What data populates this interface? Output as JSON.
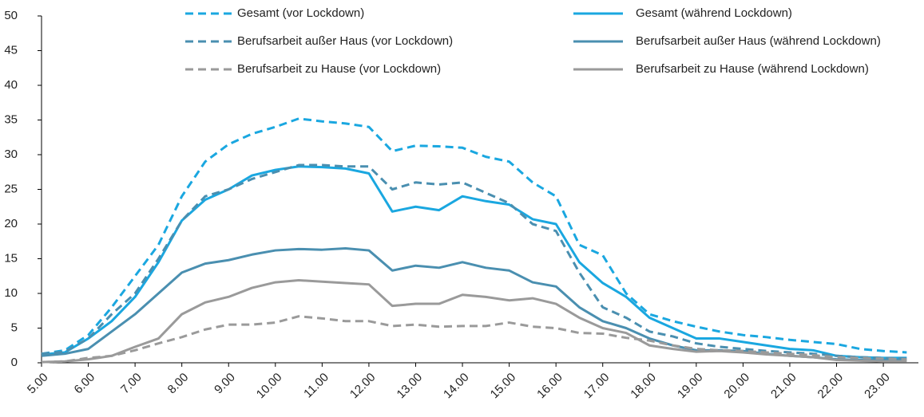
{
  "chart_data": {
    "type": "line",
    "x": [
      5,
      5.5,
      6,
      6.5,
      7,
      7.5,
      8,
      8.5,
      9,
      9.5,
      10,
      10.5,
      11,
      11.5,
      12,
      12.5,
      13,
      13.5,
      14,
      14.5,
      15,
      15.5,
      16,
      16.5,
      17,
      17.5,
      18,
      18.5,
      19,
      19.5,
      20,
      20.5,
      21,
      21.5,
      22,
      22.5,
      23,
      23.5
    ],
    "series": [
      {
        "name": "Gesamt (vor Lockdown)",
        "color": "#1aa7e0",
        "dashed": true,
        "values": [
          1.3,
          1.8,
          4,
          8,
          12.5,
          17,
          24,
          29,
          31.5,
          33,
          34,
          35.2,
          34.8,
          34.5,
          34,
          30.5,
          31.3,
          31.2,
          31,
          29.7,
          29,
          26,
          24,
          17,
          15.5,
          10,
          7,
          6,
          5.2,
          4.5,
          4,
          3.7,
          3.3,
          3,
          2.7,
          2,
          1.7,
          1.5
        ]
      },
      {
        "name": "Gesamt (während Lockdown)",
        "color": "#1aa7e0",
        "dashed": false,
        "values": [
          1.2,
          1.5,
          3.5,
          6,
          9.5,
          14.5,
          20.5,
          23.5,
          25,
          27,
          27.8,
          28.3,
          28.2,
          28,
          27.3,
          21.8,
          22.5,
          22,
          24,
          23.3,
          22.8,
          20.7,
          20,
          14.5,
          11.5,
          9.5,
          6.5,
          5,
          3.5,
          3.5,
          3,
          2.5,
          2,
          1.8,
          1,
          0.8,
          0.7,
          0.7
        ]
      },
      {
        "name": "Berufsarbeit außer Haus (vor Lockdown)",
        "color": "#4a8fb0",
        "dashed": true,
        "values": [
          1.3,
          1.6,
          3.5,
          7,
          10,
          15,
          20.5,
          24,
          25,
          26.5,
          27.5,
          28.5,
          28.5,
          28.3,
          28.3,
          25,
          26,
          25.7,
          26,
          24.5,
          23,
          20,
          19,
          13,
          8,
          6.5,
          4.5,
          3.8,
          2.8,
          2.3,
          2,
          1.7,
          1.5,
          1.3,
          1,
          0.8,
          0.7,
          0.6
        ]
      },
      {
        "name": "Berufsarbeit außer Haus (während Lockdown)",
        "color": "#4a8fb0",
        "dashed": false,
        "values": [
          1,
          1.3,
          2,
          4.5,
          7,
          10,
          13,
          14.3,
          14.8,
          15.6,
          16.2,
          16.4,
          16.3,
          16.5,
          16.2,
          13.3,
          14,
          13.7,
          14.5,
          13.7,
          13.3,
          11.6,
          11,
          8,
          6,
          5,
          3.5,
          2.5,
          1.8,
          1.8,
          1.7,
          1.3,
          1,
          0.8,
          0.5,
          0.4,
          0.4,
          0.4
        ]
      },
      {
        "name": "Berufsarbeit zu Hause (vor Lockdown)",
        "color": "#9a9a9a",
        "dashed": true,
        "values": [
          0.1,
          0.2,
          0.7,
          1,
          1.8,
          2.8,
          3.7,
          4.8,
          5.5,
          5.5,
          5.8,
          6.7,
          6.4,
          6,
          6,
          5.3,
          5.5,
          5.2,
          5.3,
          5.3,
          5.8,
          5.2,
          5,
          4.3,
          4.2,
          3.6,
          3.2,
          2.5,
          2,
          1.8,
          1.7,
          1.5,
          1.3,
          1.1,
          0.8,
          0.7,
          0.6,
          0.5
        ]
      },
      {
        "name": "Berufsarbeit zu Hause (während Lockdown)",
        "color": "#9a9a9a",
        "dashed": false,
        "values": [
          0.1,
          0.2,
          0.5,
          1,
          2.3,
          3.5,
          7,
          8.7,
          9.5,
          10.8,
          11.6,
          11.9,
          11.7,
          11.5,
          11.3,
          8.2,
          8.5,
          8.5,
          9.8,
          9.5,
          9,
          9.3,
          8.5,
          6.5,
          5,
          4.3,
          2.5,
          2,
          1.6,
          1.7,
          1.5,
          1.2,
          1,
          0.8,
          0.4,
          0.3,
          0.2,
          0.2
        ]
      }
    ],
    "xlim": [
      5,
      23.75
    ],
    "xticks": [
      {
        "value": 5,
        "label": "5.00"
      },
      {
        "value": 6,
        "label": "6.00"
      },
      {
        "value": 7,
        "label": "7.00"
      },
      {
        "value": 8,
        "label": "8.00"
      },
      {
        "value": 9,
        "label": "9.00"
      },
      {
        "value": 10,
        "label": "10.00"
      },
      {
        "value": 11,
        "label": "11.00"
      },
      {
        "value": 12,
        "label": "12.00"
      },
      {
        "value": 13,
        "label": "13.00"
      },
      {
        "value": 14,
        "label": "14.00"
      },
      {
        "value": 15,
        "label": "15.00"
      },
      {
        "value": 16,
        "label": "16.00"
      },
      {
        "value": 17,
        "label": "17.00"
      },
      {
        "value": 18,
        "label": "18.00"
      },
      {
        "value": 19,
        "label": "19.00"
      },
      {
        "value": 20,
        "label": "20.00"
      },
      {
        "value": 21,
        "label": "21.00"
      },
      {
        "value": 22,
        "label": "22.00"
      },
      {
        "value": 23,
        "label": "23.00"
      }
    ],
    "ylim": [
      0,
      50
    ],
    "yticks": [
      0,
      5,
      10,
      15,
      20,
      25,
      30,
      35,
      40,
      45,
      50
    ],
    "grid": false,
    "legend": "top"
  }
}
